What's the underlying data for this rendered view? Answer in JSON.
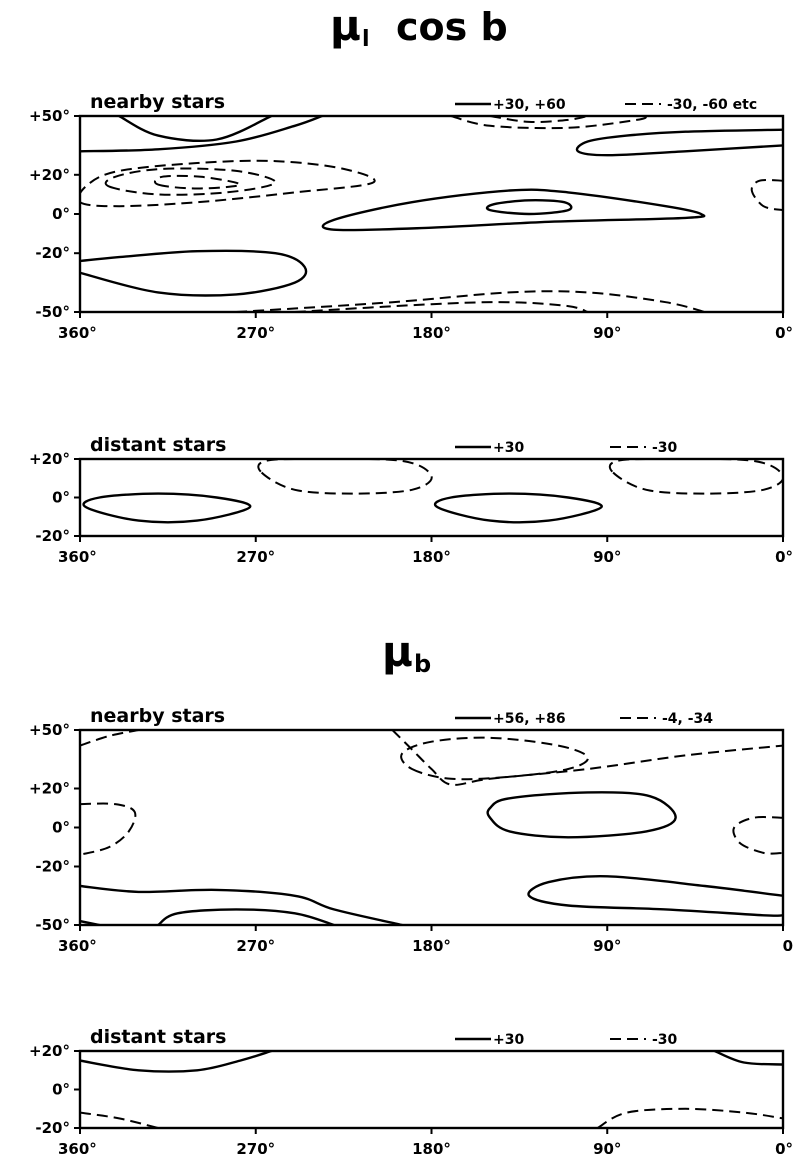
{
  "sections": [
    {
      "title_main": "μ",
      "title_sub": "l",
      "title_tail": "cos b"
    },
    {
      "title_main": "μ",
      "title_sub": "b",
      "title_tail": ""
    }
  ],
  "chart_data": [
    {
      "type": "contour",
      "section": 0,
      "panel_label": "nearby stars",
      "xlabel": "",
      "ylabel": "",
      "xlim": [
        360,
        0
      ],
      "ylim": [
        -50,
        50
      ],
      "x_ticks": [
        "360°",
        "270°",
        "180°",
        "90°",
        "0°"
      ],
      "y_ticks": [
        "+50°",
        "+20°",
        "0°",
        "-20°",
        "-50°"
      ],
      "legend": {
        "solid": "+30, +60",
        "dashed": "-30, -60 etc"
      },
      "contours": [
        {
          "style": "solid",
          "level": "+30",
          "points": [
            [
              340,
              50
            ],
            [
              320,
              40
            ],
            [
              290,
              38
            ],
            [
              262,
              50
            ]
          ]
        },
        {
          "style": "solid",
          "level": "+30",
          "points": [
            [
              360,
              32
            ],
            [
              320,
              33
            ],
            [
              280,
              37
            ],
            [
              250,
              45
            ],
            [
              236,
              50
            ]
          ]
        },
        {
          "style": "dashed",
          "level": "-30",
          "points": [
            [
              360,
              6
            ],
            [
              340,
              4
            ],
            [
              300,
              6
            ],
            [
              250,
              11
            ],
            [
              210,
              16
            ],
            [
              225,
              23
            ],
            [
              260,
              27
            ],
            [
              300,
              26
            ],
            [
              340,
              22
            ],
            [
              356,
              15
            ]
          ]
        },
        {
          "style": "dashed",
          "level": "-60",
          "points": [
            [
              345,
              14
            ],
            [
              320,
              10
            ],
            [
              285,
              11
            ],
            [
              260,
              16
            ],
            [
              280,
              22
            ],
            [
              318,
              23
            ],
            [
              342,
              19
            ]
          ]
        },
        {
          "style": "dashed",
          "level": "-60",
          "points": [
            [
              320,
              15
            ],
            [
              300,
              13
            ],
            [
              278,
              15
            ],
            [
              298,
              19
            ],
            [
              318,
              19
            ]
          ]
        },
        {
          "style": "dashed",
          "level": "-30",
          "points": [
            [
              170,
              50
            ],
            [
              150,
              45
            ],
            [
              110,
              44
            ],
            [
              75,
              48
            ],
            [
              70,
              50
            ]
          ]
        },
        {
          "style": "dashed",
          "level": "-60",
          "points": [
            [
              150,
              50
            ],
            [
              130,
              47
            ],
            [
              110,
              48
            ],
            [
              100,
              50
            ]
          ]
        },
        {
          "style": "solid",
          "level": "+30",
          "points": [
            [
              0,
              43
            ],
            [
              50,
              42
            ],
            [
              80,
              40
            ],
            [
              100,
              37
            ],
            [
              105,
              32
            ],
            [
              90,
              30
            ],
            [
              50,
              32
            ],
            [
              0,
              35
            ]
          ]
        },
        {
          "style": "dashed",
          "level": "-30",
          "points": [
            [
              0,
              17
            ],
            [
              12,
              17
            ],
            [
              16,
              12
            ],
            [
              10,
              4
            ],
            [
              0,
              2
            ]
          ]
        },
        {
          "style": "solid",
          "level": "+30",
          "points": [
            [
              230,
              -8
            ],
            [
              180,
              -7
            ],
            [
              120,
              -4
            ],
            [
              50,
              -2
            ],
            [
              42,
              0
            ],
            [
              60,
              4
            ],
            [
              110,
              11
            ],
            [
              140,
              12
            ],
            [
              190,
              6
            ],
            [
              230,
              -3
            ]
          ]
        },
        {
          "style": "solid",
          "level": "+60",
          "points": [
            [
              150,
              2
            ],
            [
              130,
              0
            ],
            [
              110,
              2
            ],
            [
              112,
              6
            ],
            [
              130,
              7
            ],
            [
              148,
              5
            ]
          ]
        },
        {
          "style": "solid",
          "level": "+30",
          "points": [
            [
              360,
              -30
            ],
            [
              320,
              -40
            ],
            [
              280,
              -41
            ],
            [
              250,
              -35
            ],
            [
              245,
              -27
            ],
            [
              260,
              -20
            ],
            [
              300,
              -19
            ],
            [
              340,
              -22
            ],
            [
              360,
              -24
            ]
          ]
        },
        {
          "style": "dashed",
          "level": "-30",
          "points": [
            [
              280,
              -50
            ],
            [
              200,
              -45
            ],
            [
              140,
              -40
            ],
            [
              100,
              -40
            ],
            [
              60,
              -45
            ],
            [
              40,
              -50
            ]
          ]
        },
        {
          "style": "dashed",
          "level": "-60",
          "points": [
            [
              250,
              -50
            ],
            [
              180,
              -46
            ],
            [
              140,
              -45
            ],
            [
              110,
              -47
            ],
            [
              100,
              -50
            ]
          ]
        }
      ]
    },
    {
      "type": "contour",
      "section": 0,
      "panel_label": "distant stars",
      "xlabel": "",
      "ylabel": "",
      "xlim": [
        360,
        0
      ],
      "ylim": [
        -20,
        20
      ],
      "x_ticks": [
        "360°",
        "270°",
        "180°",
        "90°",
        "0°"
      ],
      "y_ticks": [
        "+20°",
        "0°",
        "-20°"
      ],
      "legend": {
        "solid": "+30",
        "dashed": "-30"
      },
      "contours": [
        {
          "style": "solid",
          "level": "+30",
          "points": [
            [
              357,
              -5
            ],
            [
              330,
              -12
            ],
            [
              300,
              -12
            ],
            [
              273,
              -5
            ],
            [
              290,
              0
            ],
            [
              320,
              2
            ],
            [
              350,
              0
            ]
          ]
        },
        {
          "style": "solid",
          "level": "+30",
          "points": [
            [
              177,
              -5
            ],
            [
              150,
              -12
            ],
            [
              120,
              -12
            ],
            [
              93,
              -5
            ],
            [
              110,
              0
            ],
            [
              140,
              2
            ],
            [
              170,
              0
            ]
          ]
        },
        {
          "style": "dashed",
          "level": "-30",
          "points": [
            [
              267,
              13
            ],
            [
              250,
              4
            ],
            [
              220,
              2
            ],
            [
              190,
              4
            ],
            [
              180,
              11
            ],
            [
              195,
              19
            ],
            [
              240,
              20
            ],
            [
              265,
              19
            ]
          ]
        },
        {
          "style": "dashed",
          "level": "-30",
          "points": [
            [
              87,
              13
            ],
            [
              70,
              4
            ],
            [
              40,
              2
            ],
            [
              10,
              4
            ],
            [
              0,
              11
            ],
            [
              15,
              19
            ],
            [
              60,
              20
            ],
            [
              85,
              19
            ]
          ]
        }
      ]
    },
    {
      "type": "contour",
      "section": 1,
      "panel_label": "nearby stars",
      "xlabel": "",
      "ylabel": "",
      "xlim": [
        360,
        0
      ],
      "ylim": [
        -50,
        50
      ],
      "x_ticks": [
        "360°",
        "270°",
        "180°",
        "90°",
        "0"
      ],
      "y_ticks": [
        "+50°",
        "+20°",
        "0°",
        "-20°",
        "-50°"
      ],
      "legend": {
        "solid": "+56, +86",
        "dashed": "-4, -34"
      },
      "contours": [
        {
          "style": "dashed",
          "level": "-4",
          "points": [
            [
              360,
              42
            ],
            [
              345,
              47
            ],
            [
              330,
              50
            ]
          ]
        },
        {
          "style": "dashed",
          "level": "-4",
          "points": [
            [
              200,
              50
            ],
            [
              190,
              40
            ],
            [
              180,
              30
            ],
            [
              170,
              22
            ],
            [
              150,
              25
            ],
            [
              100,
              30
            ],
            [
              50,
              37
            ],
            [
              0,
              42
            ]
          ]
        },
        {
          "style": "dashed",
          "level": "-34",
          "points": [
            [
              190,
              30
            ],
            [
              170,
              25
            ],
            [
              140,
              26
            ],
            [
              110,
              30
            ],
            [
              100,
              36
            ],
            [
              115,
              42
            ],
            [
              150,
              46
            ],
            [
              180,
              44
            ],
            [
              195,
              38
            ]
          ]
        },
        {
          "style": "dashed",
          "level": "-4",
          "points": [
            [
              360,
              12
            ],
            [
              342,
              12
            ],
            [
              332,
              8
            ],
            [
              335,
              -2
            ],
            [
              345,
              -10
            ],
            [
              360,
              -14
            ]
          ]
        },
        {
          "style": "solid",
          "level": "+56",
          "points": [
            [
              150,
              5
            ],
            [
              140,
              -2
            ],
            [
              110,
              -5
            ],
            [
              70,
              -2
            ],
            [
              55,
              5
            ],
            [
              68,
              16
            ],
            [
              100,
              18
            ],
            [
              140,
              15
            ],
            [
              150,
              10
            ]
          ]
        },
        {
          "style": "dashed",
          "level": "-4",
          "points": [
            [
              0,
              5
            ],
            [
              15,
              5
            ],
            [
              25,
              0
            ],
            [
              22,
              -8
            ],
            [
              10,
              -13
            ],
            [
              0,
              -13
            ]
          ]
        },
        {
          "style": "solid",
          "level": "+56",
          "points": [
            [
              360,
              -30
            ],
            [
              330,
              -33
            ],
            [
              290,
              -32
            ],
            [
              250,
              -35
            ],
            [
              230,
              -42
            ],
            [
              195,
              -50
            ]
          ]
        },
        {
          "style": "solid",
          "level": "+86",
          "points": [
            [
              320,
              -50
            ],
            [
              310,
              -44
            ],
            [
              280,
              -42
            ],
            [
              250,
              -44
            ],
            [
              230,
              -50
            ]
          ]
        },
        {
          "style": "solid",
          "level": "+56",
          "points": [
            [
              360,
              -48
            ],
            [
              350,
              -50
            ]
          ]
        },
        {
          "style": "solid",
          "level": "+56",
          "points": [
            [
              0,
              -35
            ],
            [
              40,
              -30
            ],
            [
              90,
              -25
            ],
            [
              120,
              -28
            ],
            [
              130,
              -35
            ],
            [
              110,
              -40
            ],
            [
              60,
              -42
            ],
            [
              10,
              -45
            ],
            [
              0,
              -45
            ]
          ]
        }
      ]
    },
    {
      "type": "contour",
      "section": 1,
      "panel_label": "distant stars",
      "xlabel": "",
      "ylabel": "",
      "xlim": [
        360,
        0
      ],
      "ylim": [
        -20,
        20
      ],
      "x_ticks": [
        "360°",
        "270°",
        "180°",
        "90°",
        "0°"
      ],
      "y_ticks": [
        "+20°",
        "0°",
        "-20°"
      ],
      "legend": {
        "solid": "+30",
        "dashed": "-30"
      },
      "contours": [
        {
          "style": "solid",
          "level": "+30",
          "points": [
            [
              360,
              15
            ],
            [
              330,
              10
            ],
            [
              300,
              10
            ],
            [
              278,
              15
            ],
            [
              262,
              20
            ]
          ]
        },
        {
          "style": "solid",
          "level": "+30",
          "points": [
            [
              35,
              20
            ],
            [
              20,
              14
            ],
            [
              0,
              13
            ]
          ]
        },
        {
          "style": "dashed",
          "level": "-30",
          "points": [
            [
              360,
              -12
            ],
            [
              340,
              -15
            ],
            [
              320,
              -20
            ]
          ]
        },
        {
          "style": "dashed",
          "level": "-30",
          "points": [
            [
              95,
              -20
            ],
            [
              80,
              -12
            ],
            [
              50,
              -10
            ],
            [
              20,
              -12
            ],
            [
              0,
              -15
            ]
          ]
        }
      ]
    }
  ]
}
